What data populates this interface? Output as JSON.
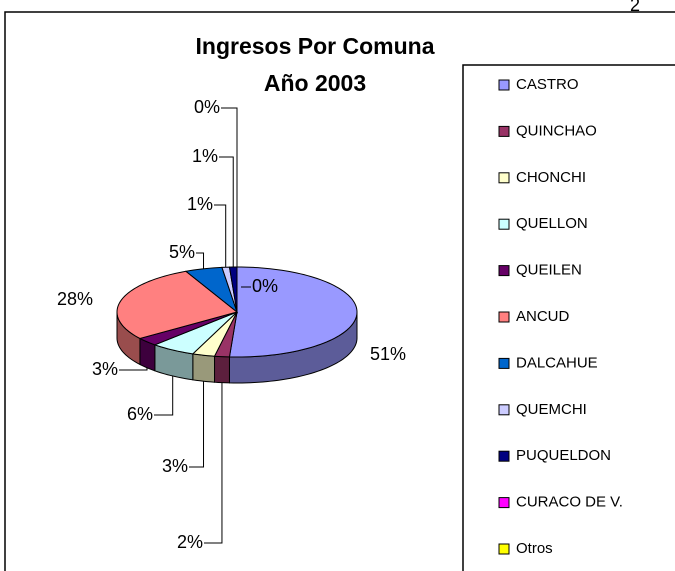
{
  "page_number": "2",
  "chart_data": {
    "type": "pie",
    "title": "Ingresos Por Comuna",
    "subtitle": "Año 2003",
    "categories": [
      "CASTRO",
      "QUINCHAO",
      "CHONCHI",
      "QUELLON",
      "QUEILEN",
      "ANCUD",
      "DALCAHUE",
      "QUEMCHI",
      "PUQUELDON",
      "CURACO DE V.",
      "Otros"
    ],
    "values": [
      51,
      2,
      3,
      6,
      3,
      28,
      5,
      1,
      1,
      0,
      0
    ],
    "value_labels": [
      "51%",
      "2%",
      "3%",
      "6%",
      "3%",
      "28%",
      "5%",
      "1%",
      "1%",
      "0%",
      "0%"
    ],
    "colors": [
      "#9999ff",
      "#993366",
      "#ffffcc",
      "#ccffff",
      "#660066",
      "#ff8080",
      "#0066cc",
      "#ccccff",
      "#000080",
      "#ff00ff",
      "#ffff00"
    ],
    "three_d": true,
    "legend": "right"
  }
}
